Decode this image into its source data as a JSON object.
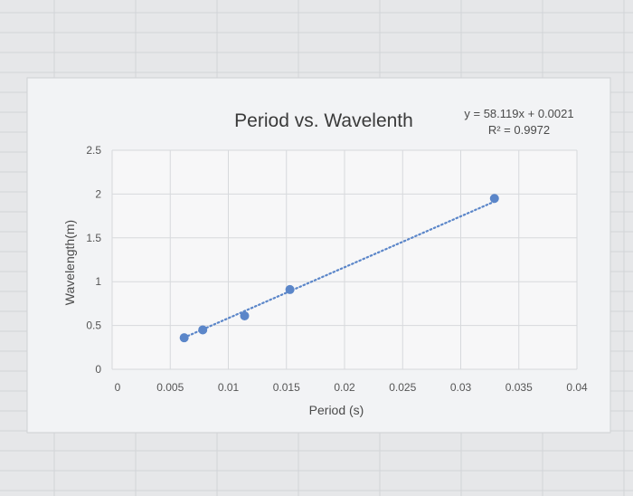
{
  "chart_data": {
    "type": "scatter",
    "title": "Period vs. Wavelenth",
    "xlabel": "Period (s)",
    "ylabel": "Wavelength(m)",
    "xlim": [
      0,
      0.04
    ],
    "ylim": [
      0,
      2.5
    ],
    "x_ticks": [
      "0",
      "0.005",
      "0.01",
      "0.015",
      "0.02",
      "0.025",
      "0.03",
      "0.035",
      "0.04"
    ],
    "y_ticks": [
      "0",
      "0.5",
      "1",
      "1.5",
      "2",
      "2.5"
    ],
    "grid": true,
    "legend": "none",
    "series": [
      {
        "x": [
          0.0062,
          0.0078,
          0.0114,
          0.0153,
          0.0329
        ],
        "y": [
          0.36,
          0.45,
          0.61,
          0.91,
          1.95
        ]
      }
    ],
    "trendline": {
      "style": "dotted",
      "slope": 58.119,
      "intercept": 0.0021,
      "x_range": [
        0.0062,
        0.0329
      ],
      "equation": "y = 58.119x + 0.0021",
      "r_squared": "R² = 0.9972"
    },
    "colors": {
      "marker": "#5b86c9",
      "trendline": "#5b86c9",
      "grid": "#d7d9dc"
    }
  }
}
